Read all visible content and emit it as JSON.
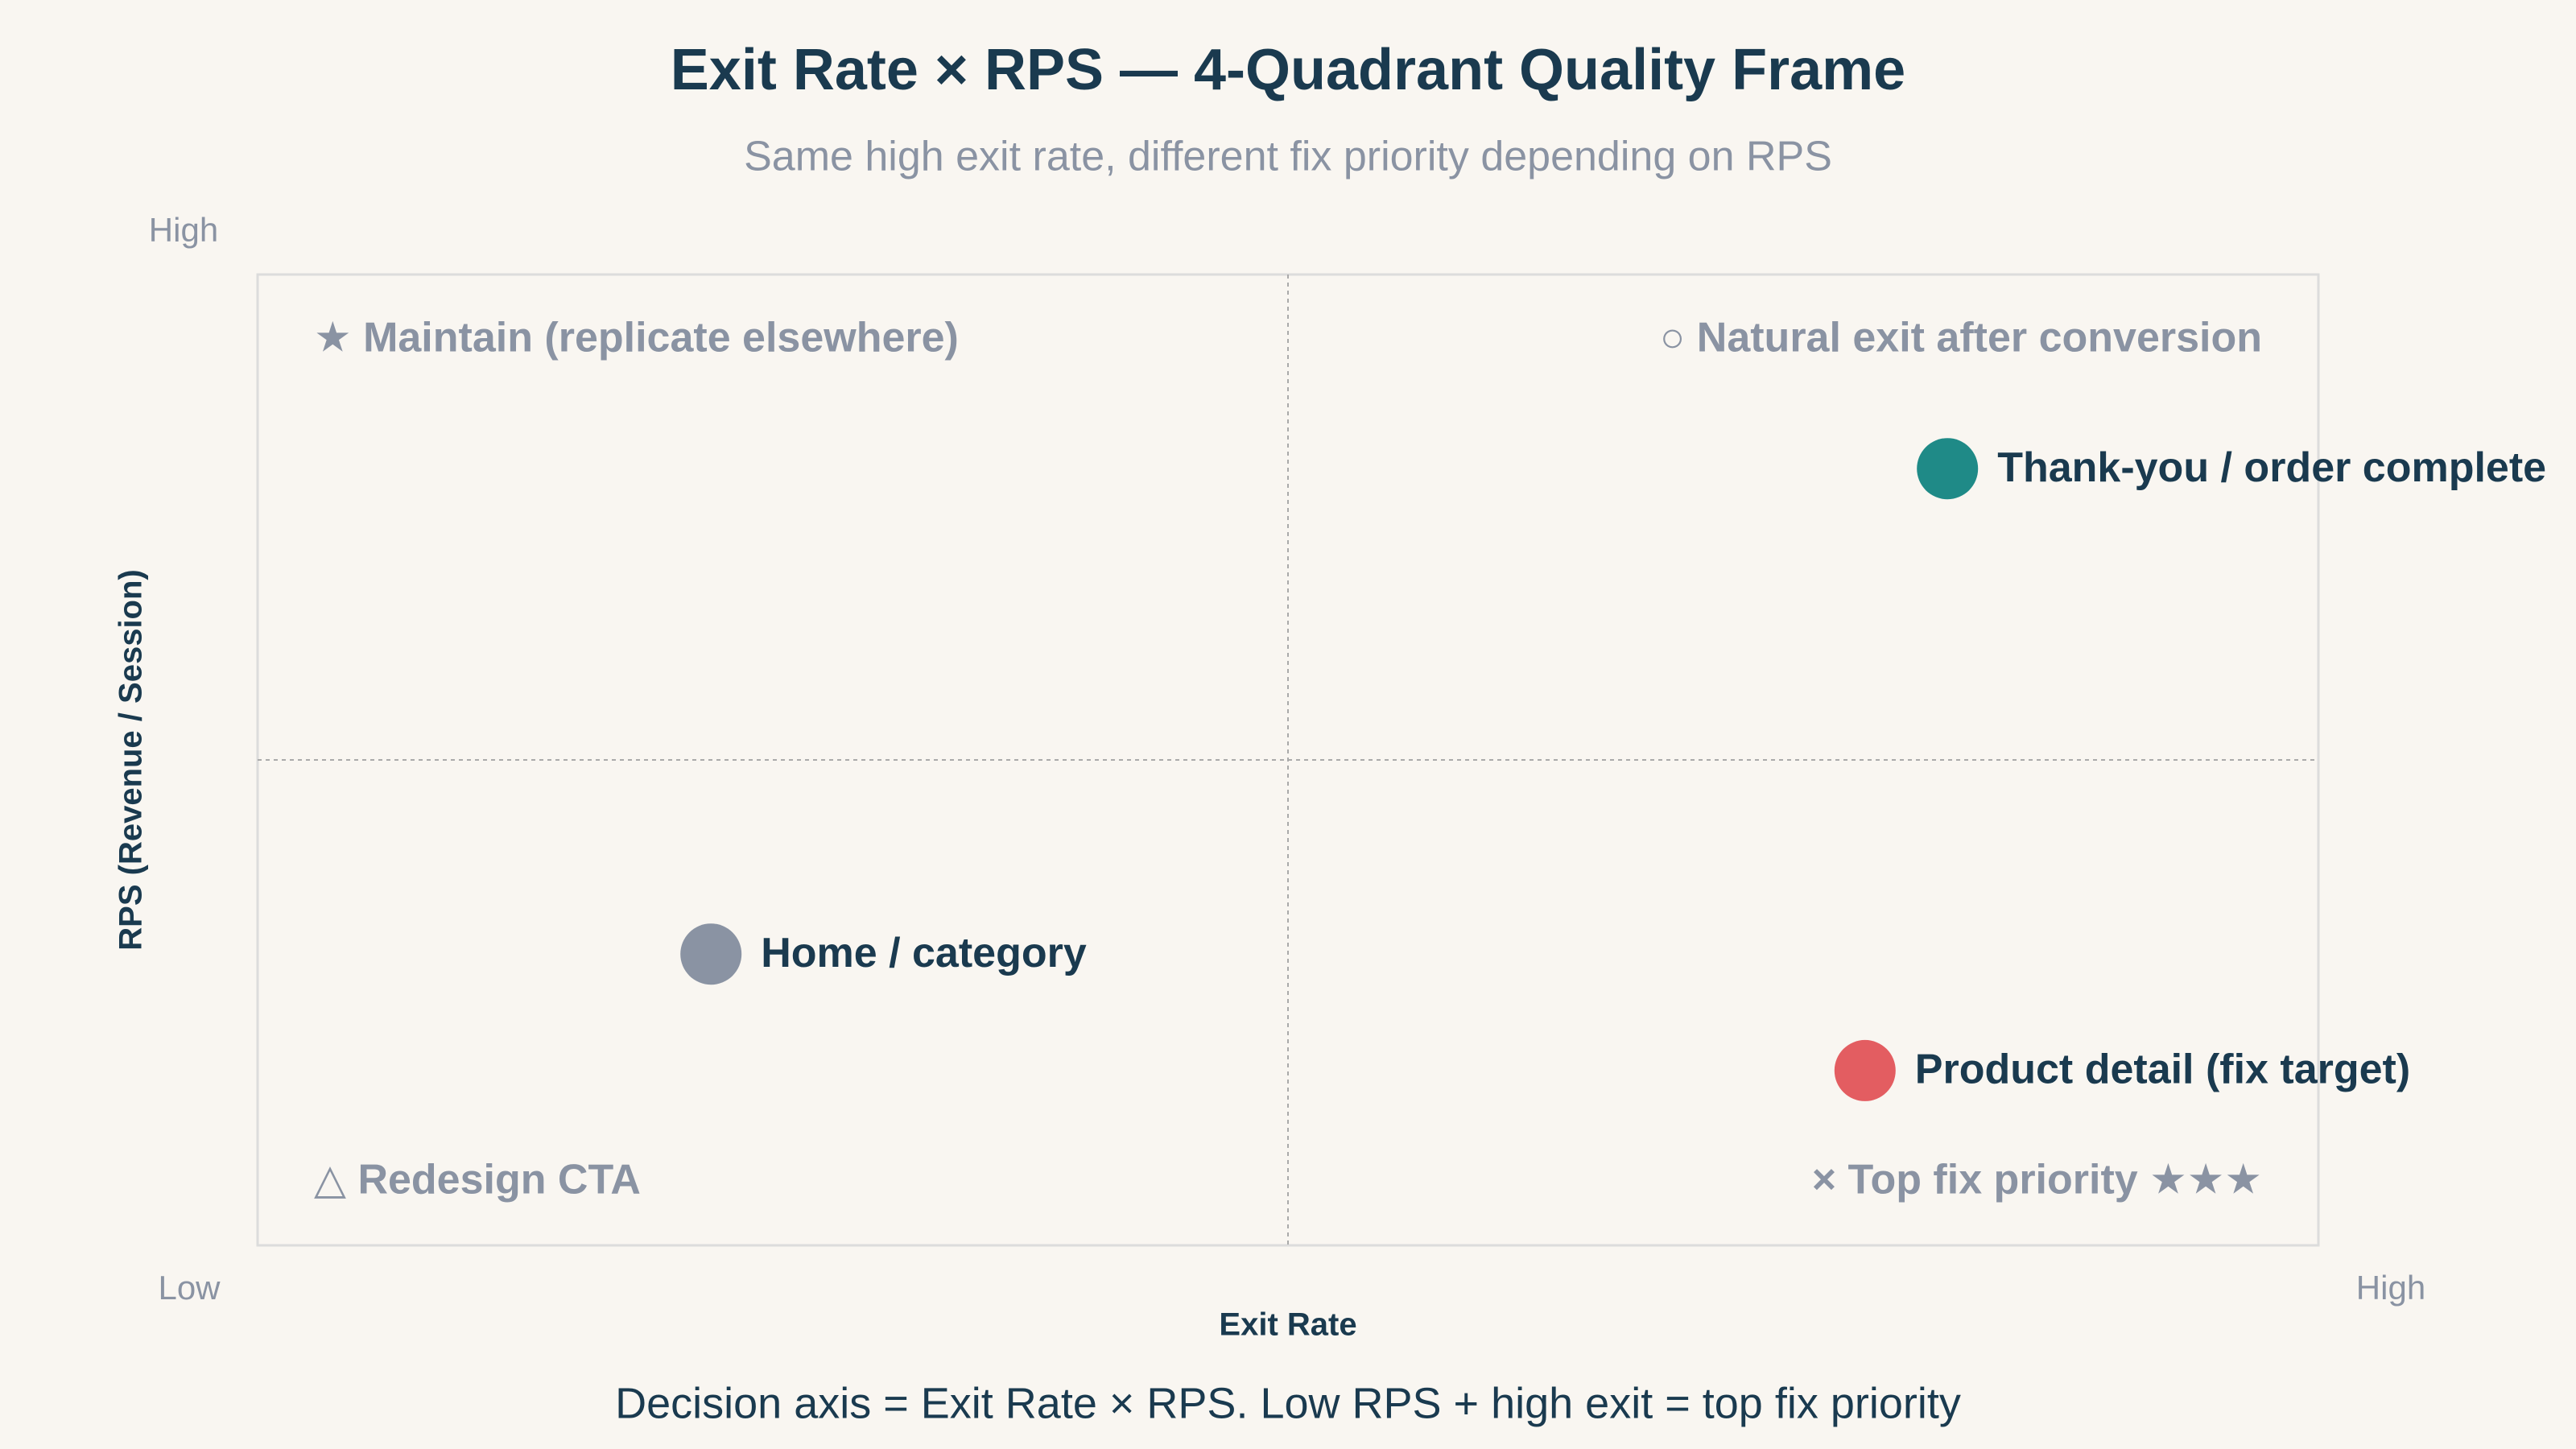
{
  "chart_data": {
    "type": "scatter",
    "title": "Exit Rate × RPS — 4-Quadrant Quality Frame",
    "subtitle": "Same high exit rate, different fix priority depending on RPS",
    "x_label": "Exit Rate",
    "y_label": "RPS (Revenue / Session)",
    "footer": "Decision axis = Exit Rate × RPS. Low RPS + high exit = top fix priority",
    "xlim": [
      0,
      100
    ],
    "ylim": [
      0,
      100
    ],
    "xticks": [
      {
        "value": 0,
        "label": "Low"
      },
      {
        "value": 100,
        "label": "High"
      }
    ],
    "yticks": [
      {
        "value": 100,
        "label": "High"
      }
    ],
    "quadrants": {
      "top_left": "★ Maintain (replicate elsewhere)",
      "top_right": "○ Natural exit after conversion",
      "bottom_left": "△ Redesign CTA",
      "bottom_right": "× Top fix priority ★★★"
    },
    "series": [
      {
        "name": "Thank-you / order complete",
        "color": "#1f8a87",
        "x": [
          82
        ],
        "values": [
          80
        ]
      },
      {
        "name": "Home / category",
        "color": "#8a93a3",
        "x": [
          22
        ],
        "values": [
          30
        ]
      },
      {
        "name": "Product detail (fix target)",
        "color": "#e35d61",
        "x": [
          78
        ],
        "values": [
          18
        ]
      }
    ]
  }
}
